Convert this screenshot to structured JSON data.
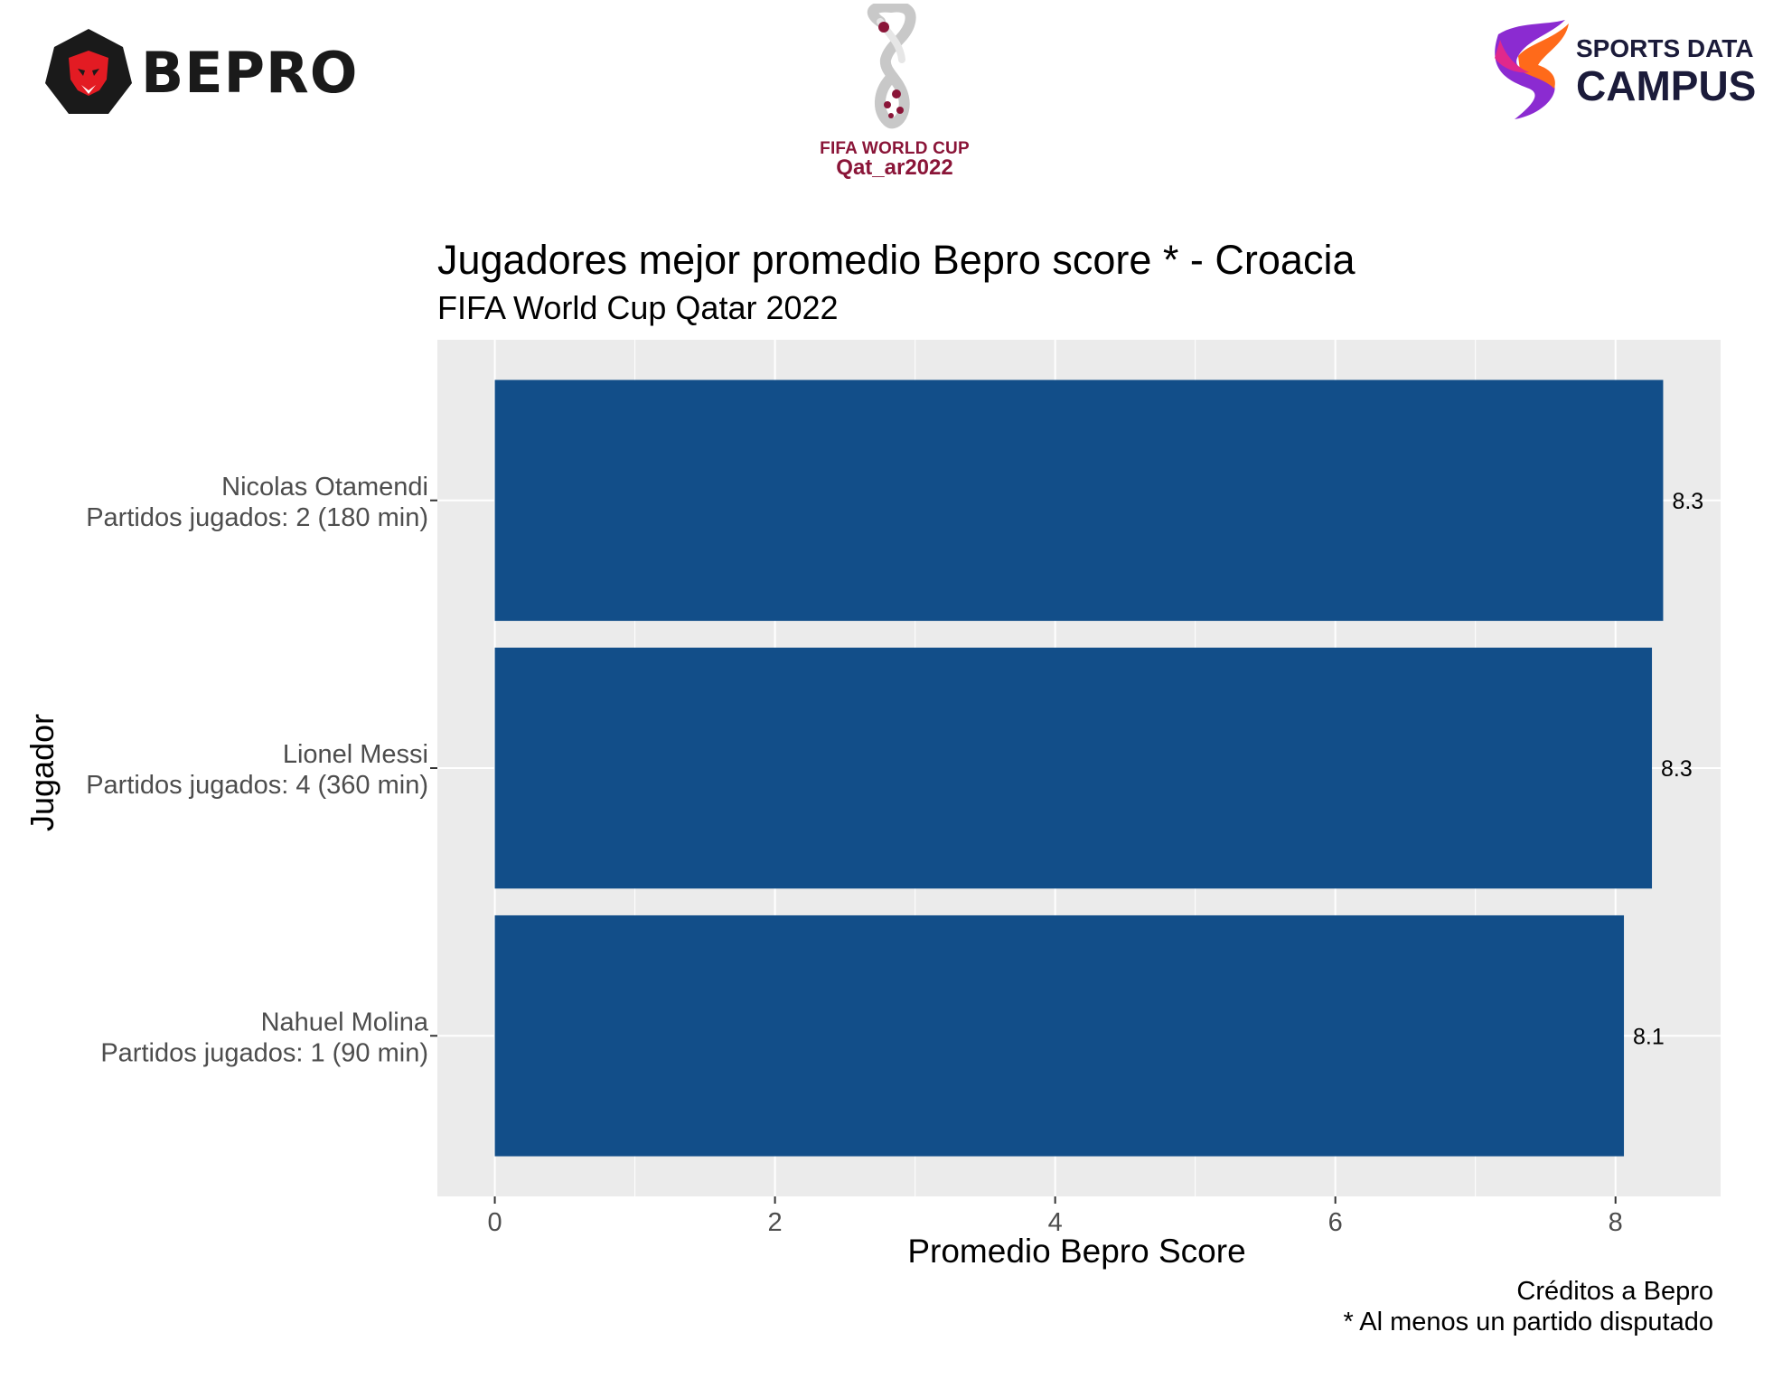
{
  "logos": {
    "left": {
      "text": "BEPRO",
      "icon": "lion-icon"
    },
    "center": {
      "line1": "FIFA WORLD CUP",
      "line2": "Qat_ar2022",
      "icon": "world-cup-trophy-icon"
    },
    "right": {
      "line1": "SPORTS DATA",
      "line2": "CAMPUS",
      "icon": "swoosh-icon"
    }
  },
  "colors": {
    "bar": "#124e89",
    "panel": "#ebebeb",
    "grid": "#ffffff",
    "fifa": "#8a1538"
  },
  "chart_data": {
    "type": "bar",
    "orientation": "horizontal",
    "title": "Jugadores mejor promedio Bepro score * - Croacia",
    "subtitle": "FIFA World Cup Qatar 2022",
    "xlabel": "Promedio Bepro Score",
    "ylabel": "Jugador",
    "xlim": [
      -0.41,
      8.75
    ],
    "xticks": [
      "0",
      "2",
      "4",
      "6",
      "8"
    ],
    "categories": [
      {
        "name": "Nicolas Otamendi",
        "detail": "Partidos jugados: 2 (180 min)"
      },
      {
        "name": "Lionel Messi",
        "detail": "Partidos jugados: 4 (360 min)"
      },
      {
        "name": "Nahuel Molina",
        "detail": "Partidos jugados: 1 (90 min)"
      }
    ],
    "values": [
      8.34,
      8.26,
      8.06
    ],
    "labels": [
      "8.3",
      "8.3",
      "8.1"
    ],
    "grid": true,
    "legend": "none"
  },
  "caption": {
    "line1": "Créditos a Bepro",
    "line2": "* Al menos un partido disputado"
  }
}
